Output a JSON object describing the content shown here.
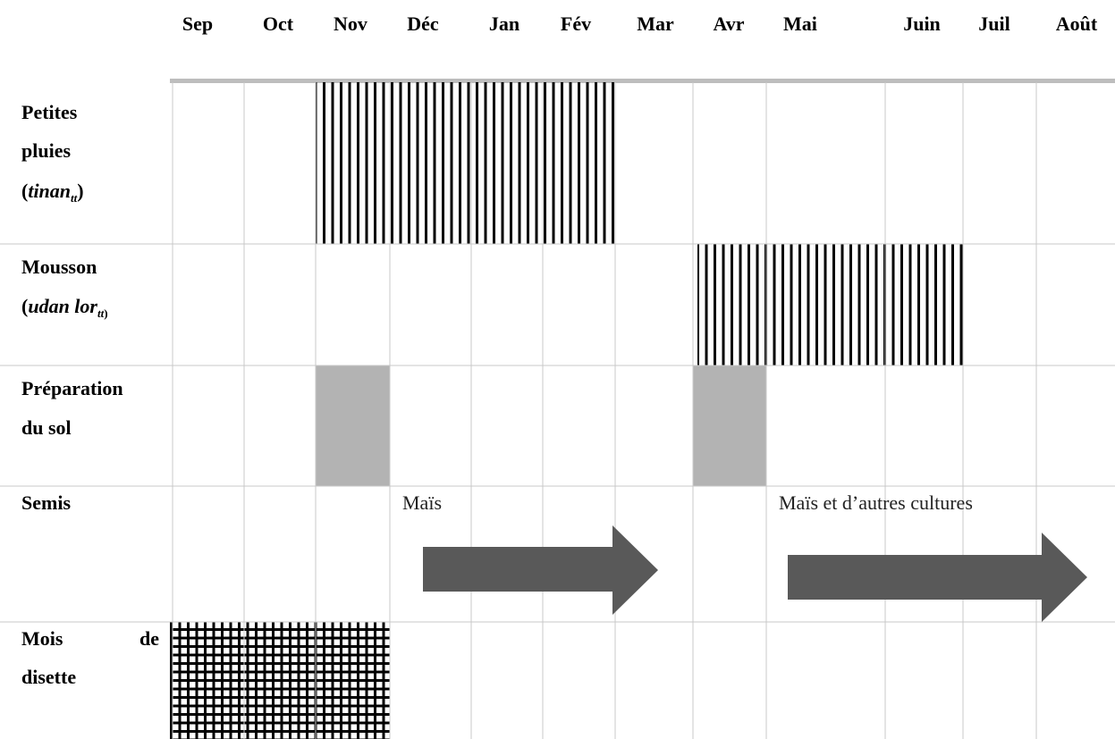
{
  "months": [
    "Sep",
    "Oct",
    "Nov",
    "Déc",
    "Jan",
    "Fév",
    "Mar",
    "Avr",
    "Mai",
    "Juin",
    "Juil",
    "Août"
  ],
  "rows": {
    "petites_pluies": {
      "line1": "Petites",
      "line2": "pluies",
      "line3_open": "(",
      "line3_word": "tinan",
      "line3_sub": "tt",
      "line3_close": ")"
    },
    "mousson": {
      "line1": "Mousson",
      "line2_open": "(",
      "line2_word": "udan lor",
      "line2_sub": "tt",
      "line2_close": ")"
    },
    "preparation": {
      "line1": "Préparation",
      "line2": "du sol"
    },
    "semis": {
      "line1": "Semis"
    },
    "disette": {
      "line1_a": "Mois",
      "line1_b": "de",
      "line2": "disette"
    }
  },
  "semis_notes": {
    "first": "Maïs",
    "second": "Maïs et d’autres cultures"
  },
  "colors": {
    "grid": "#c8c8c8",
    "header_rule": "#bdbdbd",
    "hatch": "#000000",
    "prep_fill": "#b3b3b3",
    "arrow": "#595959"
  }
}
